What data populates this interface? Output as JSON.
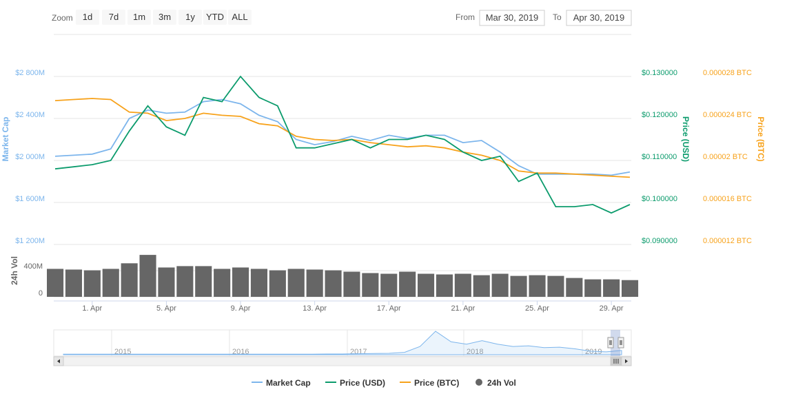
{
  "toolbar": {
    "zoom_label": "Zoom",
    "zoom_buttons": [
      "1d",
      "7d",
      "1m",
      "3m",
      "1y",
      "YTD",
      "ALL"
    ],
    "from_label": "From",
    "from_value": "Mar 30, 2019",
    "to_label": "To",
    "to_value": "Apr 30, 2019"
  },
  "colors": {
    "market_cap": "#7cb5ec",
    "price_usd": "#0b9b6c",
    "price_btc": "#f7a21b",
    "volume": "#666666"
  },
  "chart_data": {
    "type": "line",
    "x": [
      "Mar 30",
      "Mar 31",
      "Apr 1",
      "Apr 2",
      "Apr 3",
      "Apr 4",
      "Apr 5",
      "Apr 6",
      "Apr 7",
      "Apr 8",
      "Apr 9",
      "Apr 10",
      "Apr 11",
      "Apr 12",
      "Apr 13",
      "Apr 14",
      "Apr 15",
      "Apr 16",
      "Apr 17",
      "Apr 18",
      "Apr 19",
      "Apr 20",
      "Apr 21",
      "Apr 22",
      "Apr 23",
      "Apr 24",
      "Apr 25",
      "Apr 26",
      "Apr 27",
      "Apr 28",
      "Apr 29",
      "Apr 30"
    ],
    "x_ticks": [
      "1. Apr",
      "5. Apr",
      "9. Apr",
      "13. Apr",
      "17. Apr",
      "21. Apr",
      "25. Apr",
      "29. Apr"
    ],
    "series": [
      {
        "name": "Market Cap",
        "axis": "Market Cap",
        "values": [
          2040,
          2050,
          2060,
          2110,
          2400,
          2480,
          2450,
          2460,
          2560,
          2580,
          2540,
          2430,
          2370,
          2200,
          2150,
          2180,
          2230,
          2190,
          2240,
          2210,
          2240,
          2240,
          2170,
          2190,
          2080,
          1950,
          1870,
          1870,
          1870,
          1870,
          1860,
          1890
        ]
      },
      {
        "name": "Price (USD)",
        "axis": "Price (USD)",
        "values": [
          0.108,
          0.1085,
          0.109,
          0.11,
          0.117,
          0.123,
          0.118,
          0.116,
          0.125,
          0.124,
          0.13,
          0.125,
          0.123,
          0.113,
          0.113,
          0.114,
          0.115,
          0.113,
          0.115,
          0.115,
          0.116,
          0.115,
          0.112,
          0.11,
          0.111,
          0.105,
          0.107,
          0.099,
          0.099,
          0.0995,
          0.0975,
          0.0995
        ]
      },
      {
        "name": "Price (BTC)",
        "axis": "Price (BTC)",
        "values": [
          2.57e-05,
          2.58e-05,
          2.59e-05,
          2.58e-05,
          2.46e-05,
          2.45e-05,
          2.38e-05,
          2.4e-05,
          2.45e-05,
          2.43e-05,
          2.42e-05,
          2.35e-05,
          2.33e-05,
          2.23e-05,
          2.2e-05,
          2.19e-05,
          2.2e-05,
          2.17e-05,
          2.15e-05,
          2.13e-05,
          2.14e-05,
          2.12e-05,
          2.08e-05,
          2.05e-05,
          2e-05,
          1.9e-05,
          1.88e-05,
          1.88e-05,
          1.87e-05,
          1.86e-05,
          1.85e-05,
          1.84e-05
        ]
      },
      {
        "name": "24h Vol",
        "axis": "24h Vol",
        "values": [
          400,
          390,
          380,
          400,
          480,
          600,
          420,
          440,
          440,
          400,
          420,
          400,
          380,
          400,
          390,
          380,
          360,
          340,
          330,
          360,
          330,
          320,
          330,
          310,
          330,
          300,
          310,
          300,
          270,
          250,
          250,
          240
        ]
      }
    ],
    "axes": {
      "market_cap": {
        "title": "Market Cap",
        "ticks": [
          "$2 800M",
          "$2 400M",
          "$2 000M",
          "$1 600M",
          "$1 200M"
        ],
        "ylim": [
          1200,
          2800
        ],
        "unit": "M USD"
      },
      "price_usd": {
        "title": "Price (USD)",
        "ticks": [
          "$0.130000",
          "$0.120000",
          "$0.110000",
          "$0.100000",
          "$0.090000"
        ],
        "ylim": [
          0.09,
          0.13
        ]
      },
      "price_btc": {
        "title": "Price (BTC)",
        "ticks": [
          "0.000028 BTC",
          "0.000024 BTC",
          "0.00002 BTC",
          "0.000016 BTC",
          "0.000012 BTC"
        ],
        "ylim": [
          1.2e-05,
          2.8e-05
        ]
      },
      "volume": {
        "title": "24h Vol",
        "ticks": [
          "400M",
          "0"
        ],
        "ylim": [
          0,
          700
        ]
      }
    },
    "grid": true,
    "legend": "bottom",
    "navigator": {
      "year_labels": [
        "2015",
        "2016",
        "2017",
        "2018",
        "2019"
      ],
      "values": [
        0.02,
        0.02,
        0.02,
        0.02,
        0.02,
        0.02,
        0.02,
        0.02,
        0.02,
        0.02,
        0.02,
        0.02,
        0.02,
        0.02,
        0.02,
        0.02,
        0.02,
        0.03,
        0.03,
        0.04,
        0.05,
        0.06,
        0.1,
        0.35,
        1.0,
        0.55,
        0.45,
        0.6,
        0.45,
        0.35,
        0.38,
        0.3,
        0.32,
        0.25,
        0.15,
        0.12,
        0.18
      ]
    }
  }
}
